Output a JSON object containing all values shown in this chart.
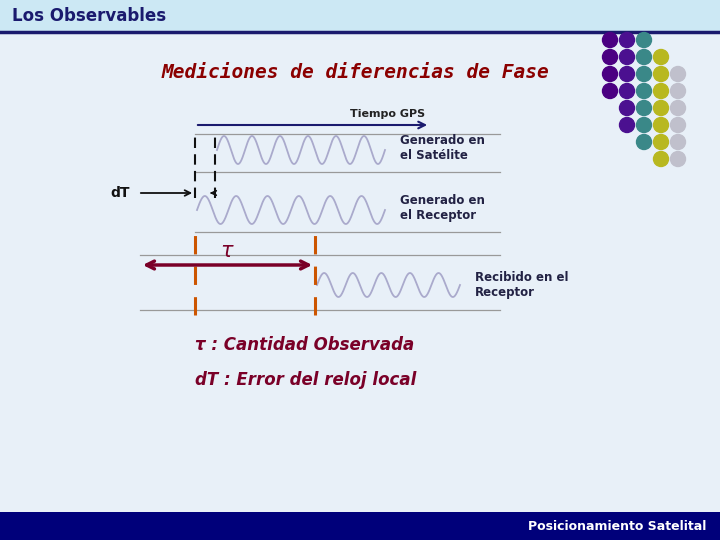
{
  "title": "Mediciones de diferencias de Fase",
  "title_color": "#8B0000",
  "header_text": "Los Observables",
  "header_bg": "#cce8f4",
  "header_text_color": "#1a1a6e",
  "main_bg": "#e8f0f8",
  "footer_text": "Posicionamiento Satelital",
  "footer_bg": "#00007a",
  "footer_text_color": "white",
  "separator_color": "#1a1a6e",
  "tiempo_gps_label": "Tiempo GPS",
  "generado_satelite": "Generado en\nel Satélite",
  "generado_receptor": "Generado en\nel Receptor",
  "recibido_receptor": "Recibido en el\nReceptor",
  "tau_label": "τ : Cantidad Observada",
  "dT_label": "dT : Error del reloj local",
  "wave_color": "#aaaacc",
  "tau_arrow_color": "#7a0028",
  "dashed_orange_color": "#cc5500",
  "black_dashed_color": "#111111",
  "axis_line_color": "#1a1a6e",
  "line_color": "#999999",
  "dot_rows": [
    [
      0,
      1,
      2
    ],
    [
      0,
      1,
      2,
      3
    ],
    [
      0,
      1,
      2,
      3,
      4
    ],
    [
      0,
      1,
      2,
      3,
      4
    ],
    [
      1,
      2,
      3,
      4
    ],
    [
      1,
      2,
      3,
      4
    ],
    [
      2,
      3,
      4
    ],
    [
      3,
      4
    ]
  ],
  "dot_color_map": {
    "0": "#4b0082",
    "1": "#4b1090",
    "2": "#3a8888",
    "3": "#b8b820",
    "4": "#c0c0cc"
  }
}
